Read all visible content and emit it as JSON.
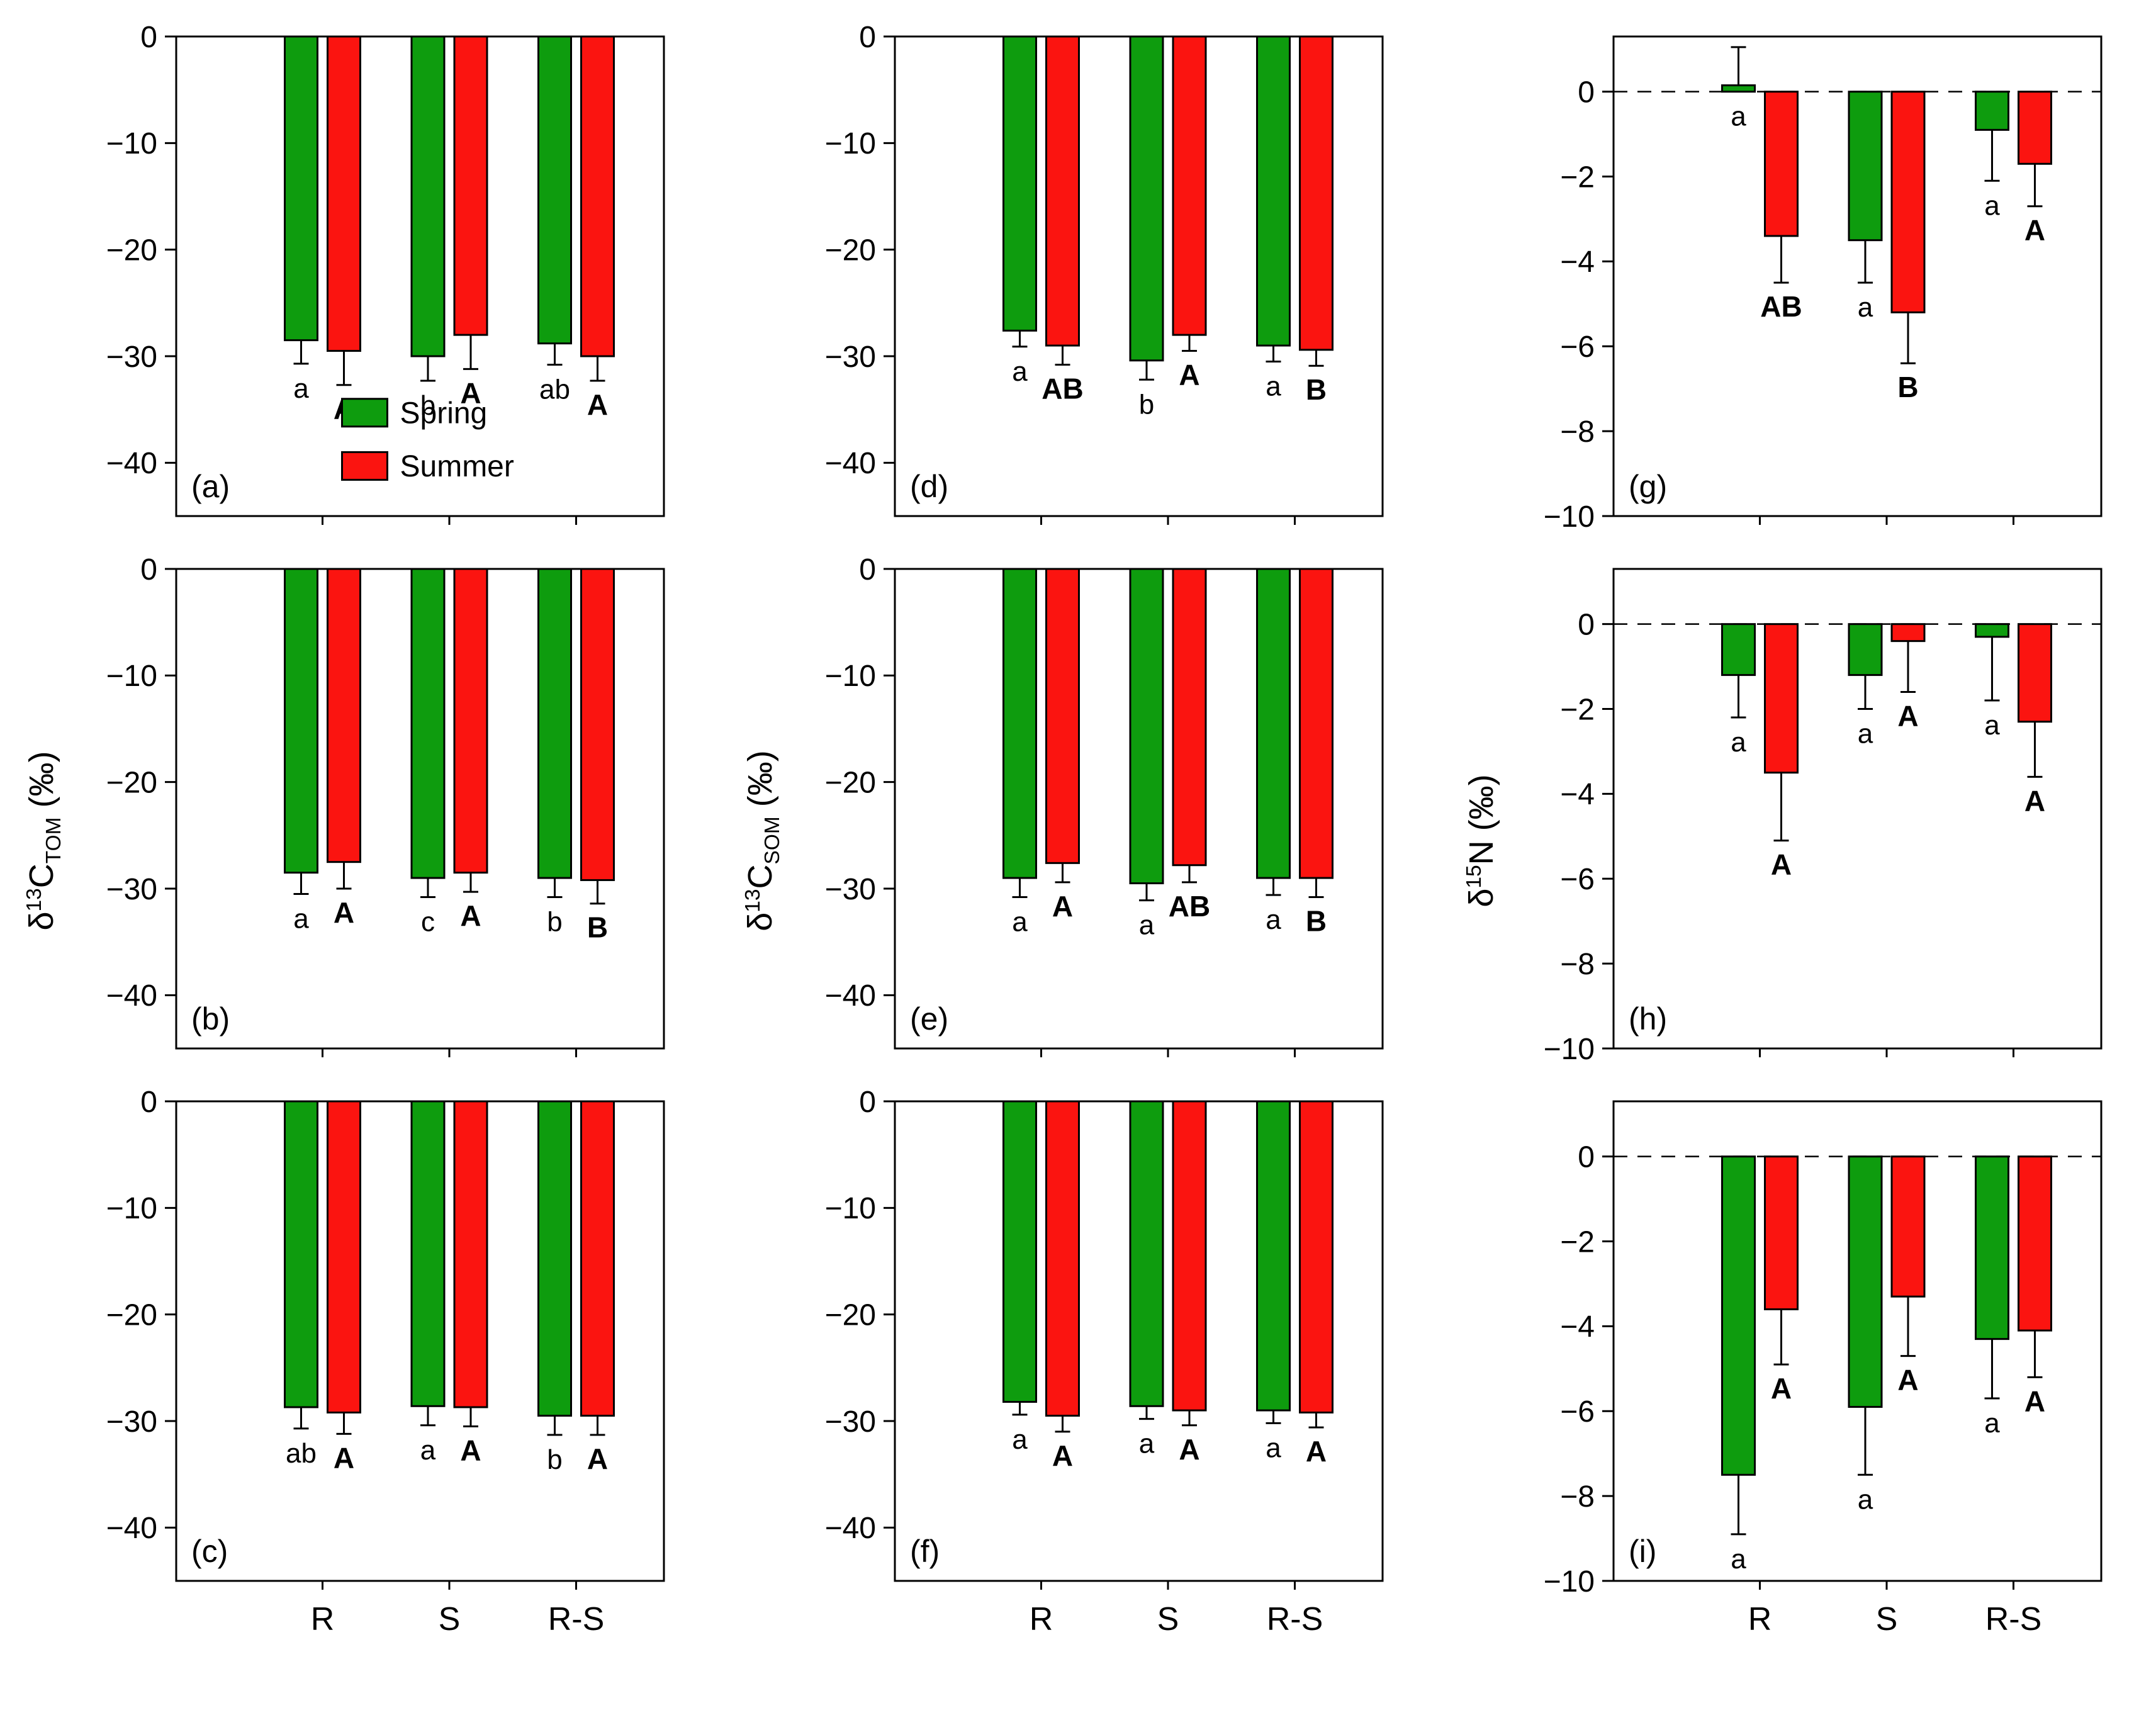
{
  "figure": {
    "background": "#ffffff",
    "colors": {
      "spring": "#0e9c0e",
      "summer": "#fb1410",
      "axis": "#000000"
    },
    "columns": [
      {
        "ylabel": {
          "pre": "δ",
          "sup": "13",
          "main": "C",
          "sub": "TOM",
          "post": " (‰)"
        }
      },
      {
        "ylabel": {
          "pre": "δ",
          "sup": "13",
          "main": "C",
          "sub": "SOM",
          "post": " (‰)"
        }
      },
      {
        "ylabel": {
          "pre": "δ",
          "sup": "15",
          "main": "N",
          "sub": "",
          "post": " (‰)"
        }
      }
    ],
    "legend": {
      "items": [
        {
          "label": "Spring"
        },
        {
          "label": "Summer"
        }
      ],
      "position": "inside-panel-a"
    },
    "x_categories": [
      "R",
      "S",
      "R-S"
    ]
  },
  "chart_data": [
    {
      "id": "a",
      "type": "bar",
      "label": "(a)",
      "ylim": [
        -45,
        0
      ],
      "yticks": [
        0,
        -10,
        -20,
        -30,
        -40
      ],
      "categories": [
        "R",
        "S",
        "R-S"
      ],
      "xlabels": false,
      "zero_dash": false,
      "legend": true,
      "series": [
        {
          "name": "Spring",
          "color": "#0e9c0e",
          "values": [
            -28.5,
            -30.0,
            -28.8
          ],
          "errors": [
            2.2,
            2.3,
            2.0
          ],
          "letters": [
            "a",
            "b",
            "ab"
          ]
        },
        {
          "name": "Summer",
          "color": "#fb1410",
          "values": [
            -29.5,
            -28.0,
            -30.0
          ],
          "errors": [
            3.2,
            3.2,
            2.3
          ],
          "letters": [
            "A",
            "A",
            "A"
          ]
        }
      ]
    },
    {
      "id": "b",
      "type": "bar",
      "label": "(b)",
      "ylim": [
        -45,
        0
      ],
      "yticks": [
        0,
        -10,
        -20,
        -30,
        -40
      ],
      "categories": [
        "R",
        "S",
        "R-S"
      ],
      "xlabels": false,
      "zero_dash": false,
      "legend": false,
      "series": [
        {
          "name": "Spring",
          "color": "#0e9c0e",
          "values": [
            -28.5,
            -29.0,
            -29.0
          ],
          "errors": [
            2.0,
            1.8,
            1.8
          ],
          "letters": [
            "a",
            "c",
            "b"
          ]
        },
        {
          "name": "Summer",
          "color": "#fb1410",
          "values": [
            -27.5,
            -28.5,
            -29.2
          ],
          "errors": [
            2.5,
            1.8,
            2.2
          ],
          "letters": [
            "A",
            "A",
            "B"
          ]
        }
      ]
    },
    {
      "id": "c",
      "type": "bar",
      "label": "(c)",
      "ylim": [
        -45,
        0
      ],
      "yticks": [
        0,
        -10,
        -20,
        -30,
        -40
      ],
      "categories": [
        "R",
        "S",
        "R-S"
      ],
      "xlabels": true,
      "zero_dash": false,
      "legend": false,
      "series": [
        {
          "name": "Spring",
          "color": "#0e9c0e",
          "values": [
            -28.7,
            -28.6,
            -29.5
          ],
          "errors": [
            2.0,
            1.8,
            1.8
          ],
          "letters": [
            "ab",
            "a",
            "b"
          ]
        },
        {
          "name": "Summer",
          "color": "#fb1410",
          "values": [
            -29.2,
            -28.7,
            -29.5
          ],
          "errors": [
            2.0,
            1.8,
            1.8
          ],
          "letters": [
            "A",
            "A",
            "A"
          ]
        }
      ]
    },
    {
      "id": "d",
      "type": "bar",
      "label": "(d)",
      "ylim": [
        -45,
        0
      ],
      "yticks": [
        0,
        -10,
        -20,
        -30,
        -40
      ],
      "categories": [
        "R",
        "S",
        "R-S"
      ],
      "xlabels": false,
      "zero_dash": false,
      "legend": false,
      "series": [
        {
          "name": "Spring",
          "color": "#0e9c0e",
          "values": [
            -27.6,
            -30.4,
            -29.0
          ],
          "errors": [
            1.5,
            1.8,
            1.5
          ],
          "letters": [
            "a",
            "b",
            "a"
          ]
        },
        {
          "name": "Summer",
          "color": "#fb1410",
          "values": [
            -29.0,
            -28.0,
            -29.4
          ],
          "errors": [
            1.8,
            1.5,
            1.5
          ],
          "letters": [
            "AB",
            "A",
            "B"
          ]
        }
      ]
    },
    {
      "id": "e",
      "type": "bar",
      "label": "(e)",
      "ylim": [
        -45,
        0
      ],
      "yticks": [
        0,
        -10,
        -20,
        -30,
        -40
      ],
      "categories": [
        "R",
        "S",
        "R-S"
      ],
      "xlabels": false,
      "zero_dash": false,
      "legend": false,
      "series": [
        {
          "name": "Spring",
          "color": "#0e9c0e",
          "values": [
            -29.0,
            -29.5,
            -29.0
          ],
          "errors": [
            1.8,
            1.6,
            1.6
          ],
          "letters": [
            "a",
            "a",
            "a"
          ]
        },
        {
          "name": "Summer",
          "color": "#fb1410",
          "values": [
            -27.6,
            -27.8,
            -29.0
          ],
          "errors": [
            1.8,
            1.6,
            1.8
          ],
          "letters": [
            "A",
            "AB",
            "B"
          ]
        }
      ]
    },
    {
      "id": "f",
      "type": "bar",
      "label": "(f)",
      "ylim": [
        -45,
        0
      ],
      "yticks": [
        0,
        -10,
        -20,
        -30,
        -40
      ],
      "categories": [
        "R",
        "S",
        "R-S"
      ],
      "xlabels": true,
      "zero_dash": false,
      "legend": false,
      "series": [
        {
          "name": "Spring",
          "color": "#0e9c0e",
          "values": [
            -28.2,
            -28.6,
            -29.0
          ],
          "errors": [
            1.2,
            1.2,
            1.2
          ],
          "letters": [
            "a",
            "a",
            "a"
          ]
        },
        {
          "name": "Summer",
          "color": "#fb1410",
          "values": [
            -29.5,
            -29.0,
            -29.2
          ],
          "errors": [
            1.5,
            1.4,
            1.4
          ],
          "letters": [
            "A",
            "A",
            "A"
          ]
        }
      ]
    },
    {
      "id": "g",
      "type": "bar",
      "label": "(g)",
      "ylim": [
        -10,
        1.3
      ],
      "yticks": [
        0,
        -2,
        -4,
        -6,
        -8,
        -10
      ],
      "categories": [
        "R",
        "S",
        "R-S"
      ],
      "xlabels": false,
      "zero_dash": true,
      "legend": false,
      "series": [
        {
          "name": "Spring",
          "color": "#0e9c0e",
          "values": [
            0.15,
            -3.5,
            -0.9
          ],
          "errors": [
            0.9,
            1.0,
            1.2
          ],
          "letters": [
            "a",
            "a",
            "a"
          ]
        },
        {
          "name": "Summer",
          "color": "#fb1410",
          "values": [
            -3.4,
            -5.2,
            -1.7
          ],
          "errors": [
            1.1,
            1.2,
            1.0
          ],
          "letters": [
            "AB",
            "B",
            "A"
          ]
        }
      ]
    },
    {
      "id": "h",
      "type": "bar",
      "label": "(h)",
      "ylim": [
        -10,
        1.3
      ],
      "yticks": [
        0,
        -2,
        -4,
        -6,
        -8,
        -10
      ],
      "categories": [
        "R",
        "S",
        "R-S"
      ],
      "xlabels": false,
      "zero_dash": true,
      "legend": false,
      "series": [
        {
          "name": "Spring",
          "color": "#0e9c0e",
          "values": [
            -1.2,
            -1.2,
            -0.3
          ],
          "errors": [
            1.0,
            0.8,
            1.5
          ],
          "letters": [
            "a",
            "a",
            "a"
          ]
        },
        {
          "name": "Summer",
          "color": "#fb1410",
          "values": [
            -3.5,
            -0.4,
            -2.3
          ],
          "errors": [
            1.6,
            1.2,
            1.3
          ],
          "letters": [
            "A",
            "A",
            "A"
          ]
        }
      ]
    },
    {
      "id": "i",
      "type": "bar",
      "label": "(i)",
      "ylim": [
        -10,
        1.3
      ],
      "yticks": [
        0,
        -2,
        -4,
        -6,
        -8,
        -10
      ],
      "categories": [
        "R",
        "S",
        "R-S"
      ],
      "xlabels": true,
      "zero_dash": true,
      "legend": false,
      "series": [
        {
          "name": "Spring",
          "color": "#0e9c0e",
          "values": [
            -7.5,
            -5.9,
            -4.3
          ],
          "errors": [
            1.4,
            1.6,
            1.4
          ],
          "letters": [
            "a",
            "a",
            "a"
          ]
        },
        {
          "name": "Summer",
          "color": "#fb1410",
          "values": [
            -3.6,
            -3.3,
            -4.1
          ],
          "errors": [
            1.3,
            1.4,
            1.1
          ],
          "letters": [
            "A",
            "A",
            "A"
          ]
        }
      ]
    }
  ]
}
